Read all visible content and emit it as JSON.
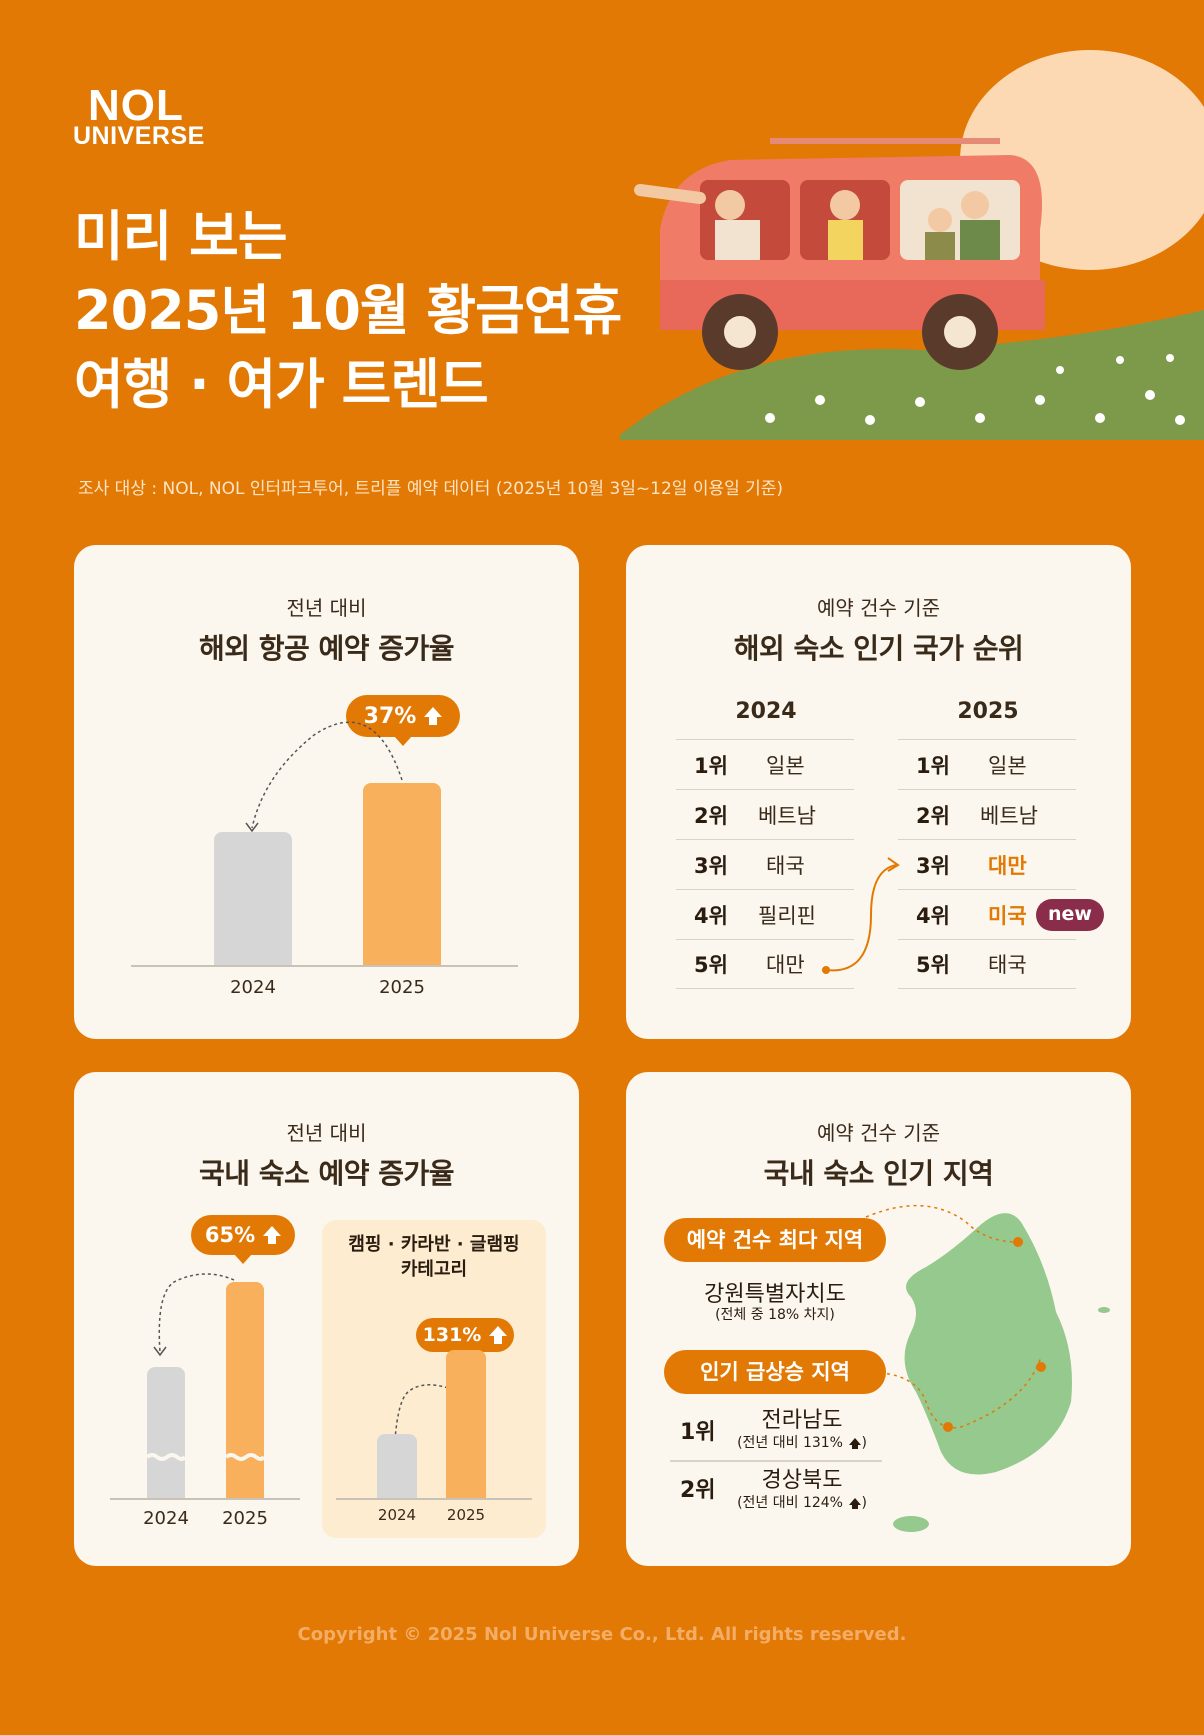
{
  "logo": {
    "line1": "NOL",
    "line2": "UNIVERSE"
  },
  "title": {
    "line1": "미리 보는",
    "line2": "2025년 10월 황금연휴",
    "line3": "여행 · 여가 트렌드"
  },
  "survey": "조사 대상 : NOL, NOL 인터파크투어, 트리플 예약 데이터 (2025년 10월 3일~12일 이용일 기준)",
  "card_air": {
    "subtitle": "전년 대비",
    "title": "해외 항공 예약 증가율",
    "badge": "37%",
    "chart_data": {
      "type": "bar",
      "categories": [
        "2024",
        "2025"
      ],
      "values": [
        100,
        137
      ]
    }
  },
  "card_overseas": {
    "subtitle": "예약 건수 기준",
    "title": "해외 숙소 인기 국가 순위",
    "year_a": "2024",
    "year_b": "2025",
    "new_badge": "new",
    "rank_2024": [
      {
        "rank": "1위",
        "name": "일본"
      },
      {
        "rank": "2위",
        "name": "베트남"
      },
      {
        "rank": "3위",
        "name": "태국"
      },
      {
        "rank": "4위",
        "name": "필리핀"
      },
      {
        "rank": "5위",
        "name": "대만"
      }
    ],
    "rank_2025": [
      {
        "rank": "1위",
        "name": "일본"
      },
      {
        "rank": "2위",
        "name": "베트남"
      },
      {
        "rank": "3위",
        "name": "대만"
      },
      {
        "rank": "4위",
        "name": "미국"
      },
      {
        "rank": "5위",
        "name": "태국"
      }
    ],
    "highlight_color": "#e27904",
    "new_color": "#8a2d4a"
  },
  "card_domestic": {
    "subtitle": "전년 대비",
    "title": "국내 숙소 예약 증가율",
    "badge_main": "65%",
    "category_title_1": "캠핑 · 카라반 · 글램핑",
    "category_title_2": "카테고리",
    "badge_category": "131%",
    "chart_data": [
      {
        "type": "bar",
        "categories": [
          "2024",
          "2025"
        ],
        "values": [
          100,
          165
        ]
      },
      {
        "type": "bar",
        "categories": [
          "2024",
          "2025"
        ],
        "values": [
          100,
          231
        ]
      }
    ]
  },
  "card_region": {
    "subtitle": "예약 건수 기준",
    "title": "국내 숙소 인기 지역",
    "most_label": "예약 건수 최다 지역",
    "most_region": "강원특별자치도",
    "most_note": "(전체 중 18% 차지)",
    "rising_label": "인기 급상승 지역",
    "rising": [
      {
        "rank": "1위",
        "name": "전라남도",
        "note": "(전년 대비 131%"
      },
      {
        "rank": "2위",
        "name": "경상북도",
        "note": "(전년 대비 124%"
      }
    ]
  },
  "copyright": "Copyright © 2025 Nol Universe Co., Ltd. All rights reserved."
}
